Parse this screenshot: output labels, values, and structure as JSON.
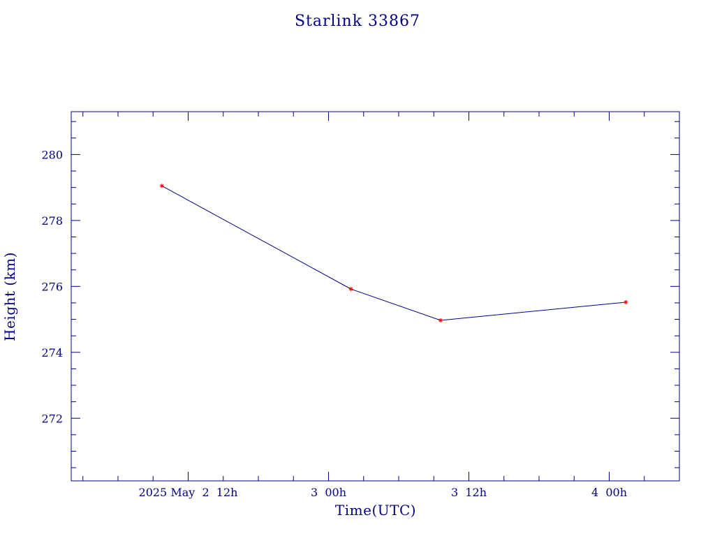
{
  "chart_data": {
    "type": "line",
    "title": "Starlink 33867",
    "xlabel": "Time(UTC)",
    "ylabel": "Height (km)",
    "x_tick_labels": [
      {
        "at": "2025-05-02T12:00Z",
        "label": "2025 May  2  12h"
      },
      {
        "at": "2025-05-03T00:00Z",
        "label": "3  00h"
      },
      {
        "at": "2025-05-03T12:00Z",
        "label": "3  12h"
      },
      {
        "at": "2025-05-04T00:00Z",
        "label": "4  00h"
      }
    ],
    "y_ticks": [
      272,
      274,
      276,
      278,
      280
    ],
    "xlim": [
      "2025-05-02T02:00Z",
      "2025-05-04T06:00Z"
    ],
    "ylim": [
      270.1,
      281.3
    ],
    "grid": false,
    "series": [
      {
        "x": [
          "2025-05-02T09:45Z",
          "2025-05-03T01:55Z",
          "2025-05-03T09:35Z",
          "2025-05-04T01:25Z"
        ],
        "y": [
          279.05,
          275.92,
          274.97,
          275.52
        ],
        "line_color": "#000080",
        "marker_color": "#ff0000",
        "marker": "asterisk"
      }
    ]
  }
}
